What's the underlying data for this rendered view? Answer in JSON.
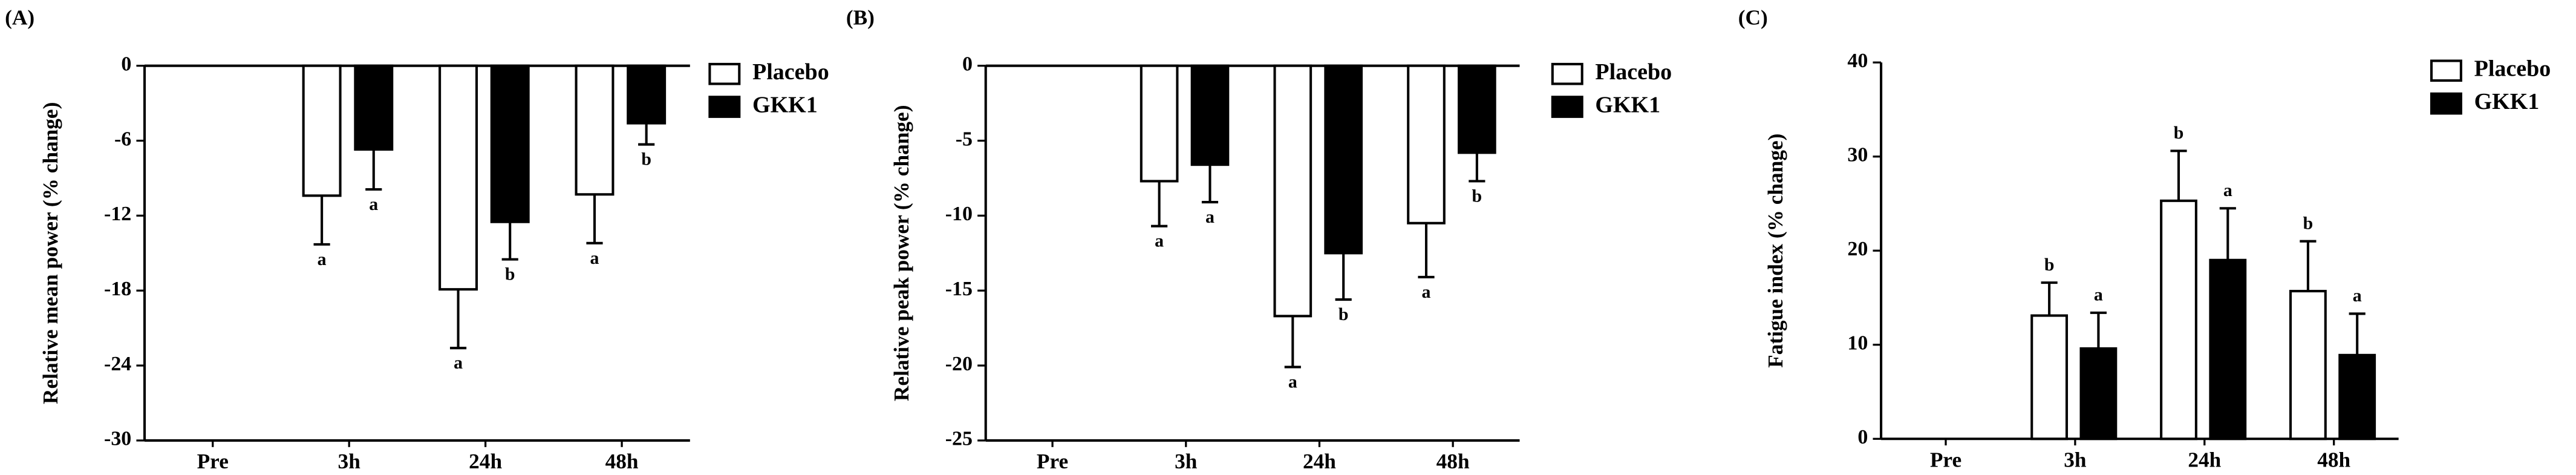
{
  "chart_data": [
    {
      "type": "bar",
      "panel_label": "(A)",
      "y_label": "Relative mean power (% change)",
      "categories": [
        "Pre",
        "3h",
        "24h",
        "48h"
      ],
      "series": [
        {
          "name": "Placebo",
          "color": "#ffffff",
          "values": [
            null,
            -10.4,
            -17.9,
            -10.3
          ],
          "errors": [
            null,
            3.9,
            4.7,
            3.9
          ],
          "letters": [
            null,
            "a",
            "a",
            "a"
          ]
        },
        {
          "name": "GKK1",
          "color": "#000000",
          "values": [
            null,
            -6.7,
            -12.5,
            -4.6
          ],
          "errors": [
            null,
            3.2,
            3.0,
            1.7
          ],
          "letters": [
            null,
            "a",
            "b",
            "b"
          ]
        }
      ],
      "ylim": [
        -30,
        0
      ],
      "yticks": [
        0,
        -6,
        -12,
        -18,
        -24,
        -30
      ],
      "legend": "outside-right"
    },
    {
      "type": "bar",
      "panel_label": "(B)",
      "y_label": "Relative peak power (% change)",
      "categories": [
        "Pre",
        "3h",
        "24h",
        "48h"
      ],
      "series": [
        {
          "name": "Placebo",
          "color": "#ffffff",
          "values": [
            null,
            -7.7,
            -16.7,
            -10.5
          ],
          "errors": [
            null,
            3.0,
            3.4,
            3.6
          ],
          "letters": [
            null,
            "a",
            "a",
            "a"
          ]
        },
        {
          "name": "GKK1",
          "color": "#000000",
          "values": [
            null,
            -6.6,
            -12.5,
            -5.8
          ],
          "errors": [
            null,
            2.5,
            3.1,
            1.9
          ],
          "letters": [
            null,
            "a",
            "b",
            "b"
          ]
        }
      ],
      "ylim": [
        -25,
        0
      ],
      "yticks": [
        0,
        -5,
        -10,
        -15,
        -20,
        -25
      ],
      "legend": "outside-right"
    },
    {
      "type": "bar",
      "panel_label": "(C)",
      "y_label": "Fatigue index (% change)",
      "categories": [
        "Pre",
        "3h",
        "24h",
        "48h"
      ],
      "series": [
        {
          "name": "Placebo",
          "color": "#ffffff",
          "values": [
            null,
            13.1,
            25.3,
            15.7
          ],
          "errors": [
            null,
            3.5,
            5.3,
            5.3
          ],
          "letters": [
            null,
            "b",
            "b",
            "b"
          ]
        },
        {
          "name": "GKK1",
          "color": "#000000",
          "values": [
            null,
            9.6,
            19.0,
            8.9
          ],
          "errors": [
            null,
            3.8,
            5.5,
            4.4
          ],
          "letters": [
            null,
            "a",
            "a",
            "a"
          ]
        }
      ],
      "ylim": [
        0,
        40
      ],
      "yticks": [
        0,
        10,
        20,
        30,
        40
      ],
      "legend": "top-right"
    }
  ]
}
